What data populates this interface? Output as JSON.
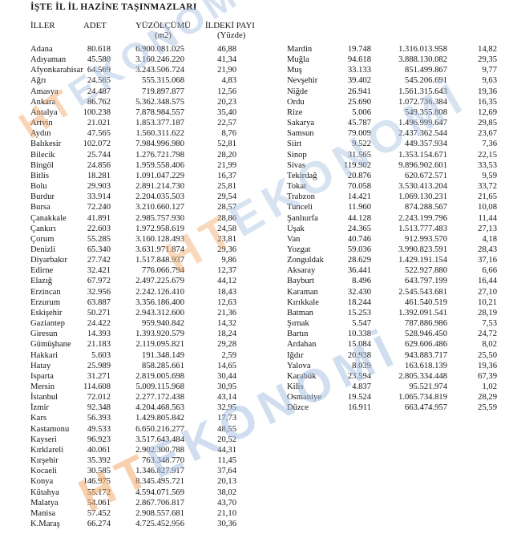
{
  "title": "İŞTE İL İL HAZİNE TAŞINMAZLARI",
  "watermark": {
    "prefix": "HT",
    "suffix": "EKONOMİ",
    "prefix_color": "#f0a35e",
    "suffix_color": "#a3bee2"
  },
  "table": {
    "headers": {
      "col1": "İLLER",
      "col2": "ADET",
      "col3": "YÜZÖLÇÜMÜ",
      "col3_sub": "(m2)",
      "col4": "İLDEKİ PAYI",
      "col4_sub": "(Yüzde)"
    },
    "left_rows": [
      [
        "Adana",
        "80.618",
        "6.900.081.025",
        "46,88"
      ],
      [
        "Adıyaman",
        "45.580",
        "3.160.246.220",
        "41,34"
      ],
      [
        "Afyonkarahisar",
        "64.569",
        "3.243.506.724",
        "21,90"
      ],
      [
        "Ağrı",
        "24.565",
        "555.315.068",
        "4,83"
      ],
      [
        "Amasya",
        "24.487",
        "719.897.877",
        "12,56"
      ],
      [
        "Ankara",
        "86.762",
        "5.362.348.575",
        "20,23"
      ],
      [
        "Antalya",
        "100.238",
        "7.878.984.557",
        "35,40"
      ],
      [
        "Artvin",
        "21.021",
        "1.853.377.187",
        "22,57"
      ],
      [
        "Aydın",
        "47.565",
        "1.560.311.622",
        "8,76"
      ],
      [
        "Balıkesir",
        "102.072",
        "7.984.996.980",
        "52,81"
      ],
      [
        "Bilecik",
        "25.744",
        "1.276.721.798",
        "28,20"
      ],
      [
        "Bingöl",
        "24.856",
        "1.959.558.406",
        "21,99"
      ],
      [
        "Bitlis",
        "18.281",
        "1.091.047.229",
        "16,37"
      ],
      [
        "Bolu",
        "29.903",
        "2.891.214.730",
        "25,81"
      ],
      [
        "Burdur",
        "33.914",
        "2.204.035.503",
        "29,54"
      ],
      [
        "Bursa",
        "72.240",
        "3.210.660.127",
        "28,57"
      ],
      [
        "Çanakkale",
        "41.891",
        "2.985.757.930",
        "28,86"
      ],
      [
        "Çankırı",
        "22.603",
        "1.972.958.619",
        "24,58"
      ],
      [
        "Çorum",
        "55.285",
        "3.160.128.493",
        "23,81"
      ],
      [
        "Denizli",
        "65.340",
        "3.631.971.874",
        "29,36"
      ],
      [
        "Diyarbakır",
        "27.742",
        "1.517.848.937",
        "9,86"
      ],
      [
        "Edirne",
        "32.421",
        "776.066.794",
        "12,37"
      ],
      [
        "Elazığ",
        "67.972",
        "2.497.225.679",
        "44,12"
      ],
      [
        "Erzincan",
        "32.956",
        "2.242.126.410",
        "18,43"
      ],
      [
        "Erzurum",
        "63.887",
        "3.356.186.400",
        "12,63"
      ],
      [
        "Eskişehir",
        "50.271",
        "2.943.312.600",
        "21,36"
      ],
      [
        "Gaziantep",
        "24.422",
        "959.940.842",
        "14,32"
      ],
      [
        "Giresun",
        "14.393",
        "1.393.920.579",
        "18,24"
      ],
      [
        "Gümüşhane",
        "21.183",
        "2.119.095.821",
        "29,28"
      ],
      [
        "Hakkari",
        "5.603",
        "191.348.149",
        "2,59"
      ],
      [
        "Hatay",
        "25.989",
        "858.285.661",
        "14,65"
      ],
      [
        "Isparta",
        "31.271",
        "2.819.005.698",
        "30,44"
      ],
      [
        "Mersin",
        "114.608",
        "5.009.115.968",
        "30,95"
      ],
      [
        "İstanbul",
        "72.012",
        "2.277.172.438",
        "43,14"
      ],
      [
        "İzmir",
        "92.348",
        "4.204.468.563",
        "32,95"
      ],
      [
        "Kars",
        "56.393",
        "1.429.805.842",
        "17,73"
      ],
      [
        "Kastamonu",
        "49.533",
        "6.650.216.277",
        "48,55"
      ],
      [
        "Kayseri",
        "96.923",
        "3.517.643.484",
        "20,52"
      ],
      [
        "Kırklareli",
        "40.061",
        "2.902.300.788",
        "44,31"
      ],
      [
        "Kırşehir",
        "35.392",
        "763.348.770",
        "11,45"
      ],
      [
        "Kocaeli",
        "30.585",
        "1.346.827.917",
        "37,64"
      ],
      [
        "Konya",
        "146.975",
        "8.345.495.721",
        "20,13"
      ],
      [
        "Kütahya",
        "55.172",
        "4.594.071.569",
        "38,02"
      ],
      [
        "Malatya",
        "54.061",
        "2.867.706.817",
        "43,70"
      ],
      [
        "Manisa",
        "57.452",
        "2.908.557.681",
        "21,10"
      ],
      [
        "K.Maraş",
        "66.274",
        "4.725.452.956",
        "30,36"
      ]
    ],
    "right_rows": [
      [
        "Mardin",
        "19.748",
        "1.316.013.958",
        "14,82"
      ],
      [
        "Muğla",
        "94.618",
        "3.888.130.082",
        "29,35"
      ],
      [
        "Muş",
        "33.133",
        "851.499.867",
        "9,77"
      ],
      [
        "Nevşehir",
        "39.402",
        "545.206.691",
        "9,63"
      ],
      [
        "Niğde",
        "26.941",
        "1.561.315.643",
        "19,36"
      ],
      [
        "Ordu",
        "25.690",
        "1.072.736.384",
        "16,35"
      ],
      [
        "Rize",
        "5.006",
        "549.355.808",
        "12,69"
      ],
      [
        "Sakarya",
        "45.787",
        "1.496.999.647",
        "29,85"
      ],
      [
        "Samsun",
        "79.009",
        "2.437.362.544",
        "23,67"
      ],
      [
        "Siirt",
        "9.522",
        "449.357.934",
        "7,36"
      ],
      [
        "Sinop",
        "31.565",
        "1.353.154.671",
        "22,15"
      ],
      [
        "Sivas",
        "119.902",
        "9.896.902.601",
        "33,53"
      ],
      [
        "Tekirdağ",
        "20.876",
        "620.672.571",
        "9,59"
      ],
      [
        "Tokat",
        "70.058",
        "3.530.413.204",
        "33,72"
      ],
      [
        "Trabzon",
        "14.421",
        "1.069.130.231",
        "21,65"
      ],
      [
        "Tunceli",
        "11.960",
        "874.288.567",
        "10,08"
      ],
      [
        "Şanlıurfa",
        "44.128",
        "2.243.199.796",
        "11,44"
      ],
      [
        "Uşak",
        "24.365",
        "1.513.777.483",
        "27,13"
      ],
      [
        "Van",
        "40.746",
        "912.993.570",
        "4,18"
      ],
      [
        "Yozgat",
        "59.036",
        "3.990.823.591",
        "28,43"
      ],
      [
        "Zonguldak",
        "28.629",
        "1.429.191.154",
        "37,16"
      ],
      [
        "Aksaray",
        "36.441",
        "522.927.880",
        "6,66"
      ],
      [
        "Bayburt",
        "8.496",
        "643.797.199",
        "16,44"
      ],
      [
        "Karaman",
        "32.430",
        "2.545.543.681",
        "27,10"
      ],
      [
        "Kırıkkale",
        "18.244",
        "461.540.519",
        "10,21"
      ],
      [
        "Batman",
        "15.253",
        "1.392.091.541",
        "28,19"
      ],
      [
        "Şırnak",
        "5.547",
        "787.886.986",
        "7,53"
      ],
      [
        "Bartın",
        "10.338",
        "528.946.450",
        "24,72"
      ],
      [
        "Ardahan",
        "15.084",
        "629.606.486",
        "8,02"
      ],
      [
        "Iğdır",
        "20.938",
        "943.883.717",
        "25,50"
      ],
      [
        "Yalova",
        "8.039",
        "163.618.139",
        "19,36"
      ],
      [
        "Karabük",
        "23.594",
        "2.805.334.448",
        "67,39"
      ],
      [
        "Kilis",
        "4.837",
        "95.521.974",
        "1,02"
      ],
      [
        "Osmaniye",
        "19.524",
        "1.065.734.819",
        "28,29"
      ],
      [
        "Düzce",
        "16.911",
        "663.474.957",
        "25,59"
      ]
    ]
  }
}
